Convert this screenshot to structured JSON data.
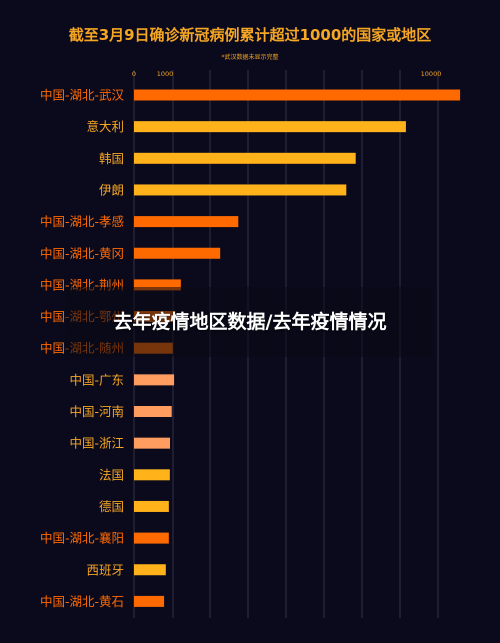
{
  "chart_data": {
    "type": "bar",
    "orientation": "horizontal",
    "title": "截至3月9日确诊新冠病例累计超过1000的国家或地区",
    "subtitle": "*武汉数据未显示完整",
    "x_ticks": [
      0,
      1000,
      10000
    ],
    "xlim": [
      0,
      11300
    ],
    "grid": true,
    "categories": [
      "中国-湖北-武汉",
      "意大利",
      "韩国",
      "伊朗",
      "中国-湖北-孝感",
      "中国-湖北-黄冈",
      "中国-湖北-荆州",
      "中国-湖北-鄂州",
      "中国-湖北-随州",
      "中国-广东",
      "中国-河南",
      "中国-浙江",
      "法国",
      "德国",
      "中国-湖北-襄阳",
      "西班牙",
      "中国-湖北-黄石"
    ],
    "values": [
      11000,
      9172,
      7478,
      7161,
      3518,
      2907,
      1580,
      1394,
      1307,
      1352,
      1272,
      1215,
      1209,
      1176,
      1175,
      1073,
      1015
    ],
    "category_group": [
      "hubei",
      "intl",
      "intl",
      "intl",
      "hubei",
      "hubei",
      "hubei",
      "hubei",
      "hubei",
      "china",
      "china",
      "china",
      "intl",
      "intl",
      "hubei",
      "intl",
      "hubei"
    ]
  },
  "colors": {
    "background": "#0b0a1d",
    "title": "#f5a623",
    "hubei_label": "#ff6a00",
    "other_label": "#f5a623",
    "bars": [
      "#ff6a00",
      "#ffb21a",
      "#ffb21a",
      "#ffb21a",
      "#ff6a00",
      "#ff6a00",
      "#ff6a00",
      "#ff6a00",
      "#ff6a00",
      "#ff9d60",
      "#ff9d60",
      "#ff9d60",
      "#ffb21a",
      "#ffb21a",
      "#ff6a00",
      "#ffb21a",
      "#ff6a00"
    ],
    "grid": "#3a3a52"
  },
  "overlay": {
    "caption": "去年疫情地区数据/去年疫情情况"
  }
}
